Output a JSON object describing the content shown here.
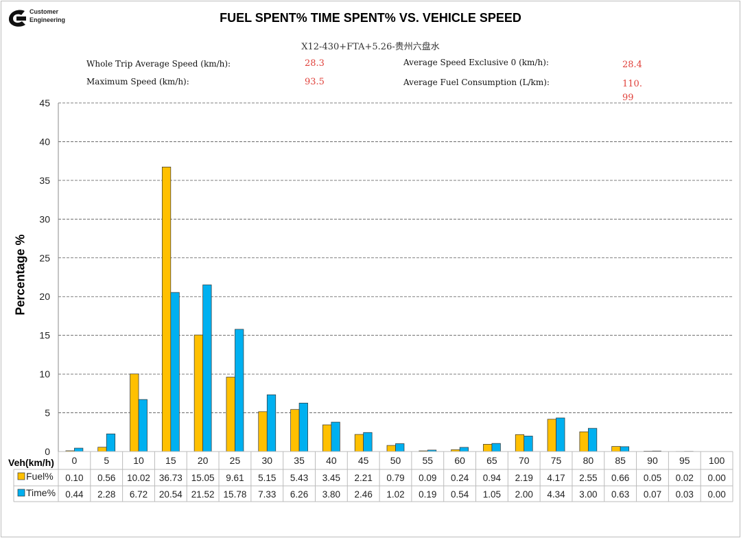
{
  "logo": {
    "line1": "Customer",
    "line2": "Engineering"
  },
  "chart_data": {
    "type": "bar",
    "title": "FUEL SPENT% TIME SPENT% VS. VEHICLE SPEED",
    "subtitle": "X12-430+FTA+5.26-贵州六盘水",
    "ylabel": "Percentage %",
    "xlabel": "Veh(km/h)",
    "ylim": [
      0,
      45
    ],
    "yticks": [
      0,
      5,
      10,
      15,
      20,
      25,
      30,
      35,
      40,
      45
    ],
    "grid": true,
    "legend": "data-table",
    "categories": [
      "0",
      "5",
      "10",
      "15",
      "20",
      "25",
      "30",
      "35",
      "40",
      "45",
      "50",
      "55",
      "60",
      "65",
      "70",
      "75",
      "80",
      "85",
      "90",
      "95",
      "100"
    ],
    "series": [
      {
        "name": "Fuel%",
        "color": "#FFC000",
        "values": [
          "0.10",
          "0.56",
          "10.02",
          "36.73",
          "15.05",
          "9.61",
          "5.15",
          "5.43",
          "3.45",
          "2.21",
          "0.79",
          "0.09",
          "0.24",
          "0.94",
          "2.19",
          "4.17",
          "2.55",
          "0.66",
          "0.05",
          "0.02",
          "0.00"
        ]
      },
      {
        "name": "Time%",
        "color": "#00B0F0",
        "values": [
          "0.44",
          "2.28",
          "6.72",
          "20.54",
          "21.52",
          "15.78",
          "7.33",
          "6.26",
          "3.80",
          "2.46",
          "1.02",
          "0.19",
          "0.54",
          "1.05",
          "2.00",
          "4.34",
          "3.00",
          "0.63",
          "0.07",
          "0.03",
          "0.00"
        ]
      }
    ]
  },
  "stats": {
    "whole_trip_label": "Whole Trip Average Speed (km/h):",
    "whole_trip_value": "28.3",
    "max_speed_label": "Maximum Speed (km/h):",
    "max_speed_value": "93.5",
    "avg_excl0_label": "Average Speed Exclusive 0 (km/h):",
    "avg_excl0_value": "28.4",
    "avg_fuel_label": "Average Fuel Consumption (L/km):",
    "avg_fuel_value_line1": "110.",
    "avg_fuel_value_line2": "99"
  }
}
